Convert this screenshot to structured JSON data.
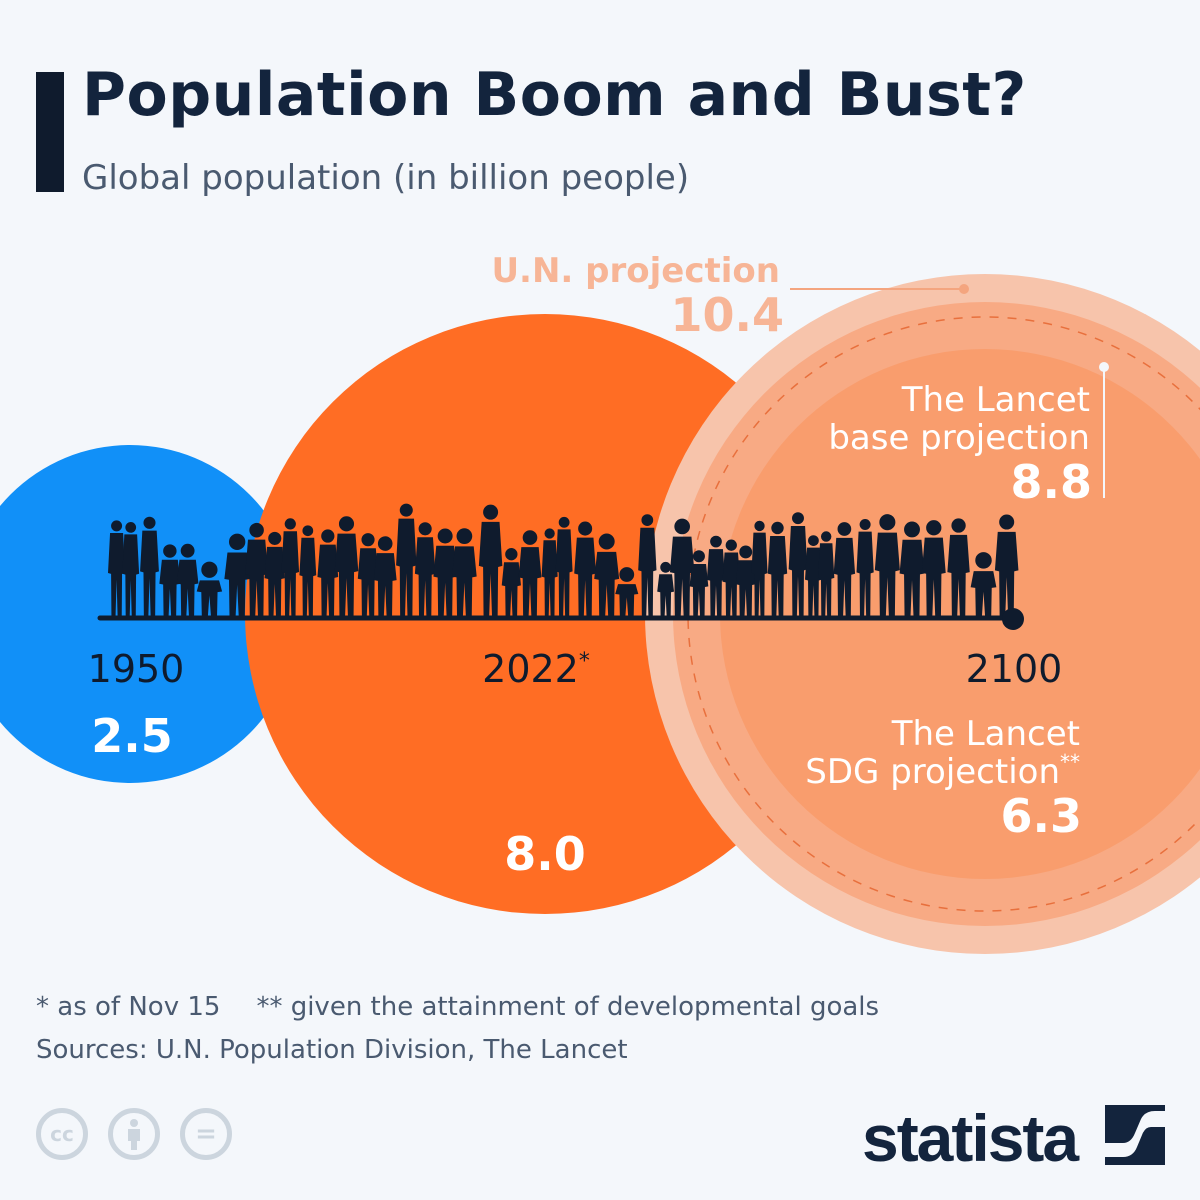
{
  "header": {
    "title": "Population Boom and Bust?",
    "subtitle": "Global population (in billion people)"
  },
  "chart_data": {
    "type": "bubble",
    "title": "Population Boom and Bust?",
    "subtitle": "Global population (in billion people)",
    "unit": "billion people",
    "points": [
      {
        "year": "1950",
        "label": "",
        "value": 2.5,
        "display": "2.5",
        "color": "#1190f8"
      },
      {
        "year": "2022*",
        "label": "",
        "value": 8.0,
        "display": "8.0",
        "color": "#ff6d24"
      },
      {
        "year": "2100",
        "label": "U.N. projection",
        "value": 10.4,
        "display": "10.4",
        "color": "#f7c4ab"
      },
      {
        "year": "2100",
        "label": "The Lancet base projection",
        "value": 8.8,
        "display": "8.8",
        "color": "#f8aa84"
      },
      {
        "year": "2100",
        "label": "The Lancet SDG projection**",
        "value": 6.3,
        "display": "6.3",
        "color": "#f99d6d"
      }
    ]
  },
  "labels": {
    "year_1950": "1950",
    "year_2022": "2022",
    "year_2022_mark": "*",
    "year_2100": "2100",
    "val_1950": "2.5",
    "val_2022": "8.0",
    "un_label": "U.N. projection",
    "un_value": "10.4",
    "base_line1": "The Lancet",
    "base_line2": "base projection",
    "base_value": "8.8",
    "sdg_line1": "The Lancet",
    "sdg_line2": "SDG projection",
    "sdg_mark": "**",
    "sdg_value": "6.3"
  },
  "footer": {
    "note1": "* as of Nov 15",
    "note2": "** given the attainment of developmental goals",
    "sources": "Sources: U.N. Population Division, The Lancet",
    "license_icons": [
      "cc",
      "by",
      "nd"
    ],
    "cc_text": "cc",
    "nd_text": "=",
    "brand": "statista"
  },
  "colors": {
    "background": "#f4f7fb",
    "navy": "#0f1b2d",
    "blue": "#1190f8",
    "orange": "#ff6d24",
    "un": "#f7c4ab",
    "base": "#f8aa84",
    "sdg": "#f99d6d"
  }
}
